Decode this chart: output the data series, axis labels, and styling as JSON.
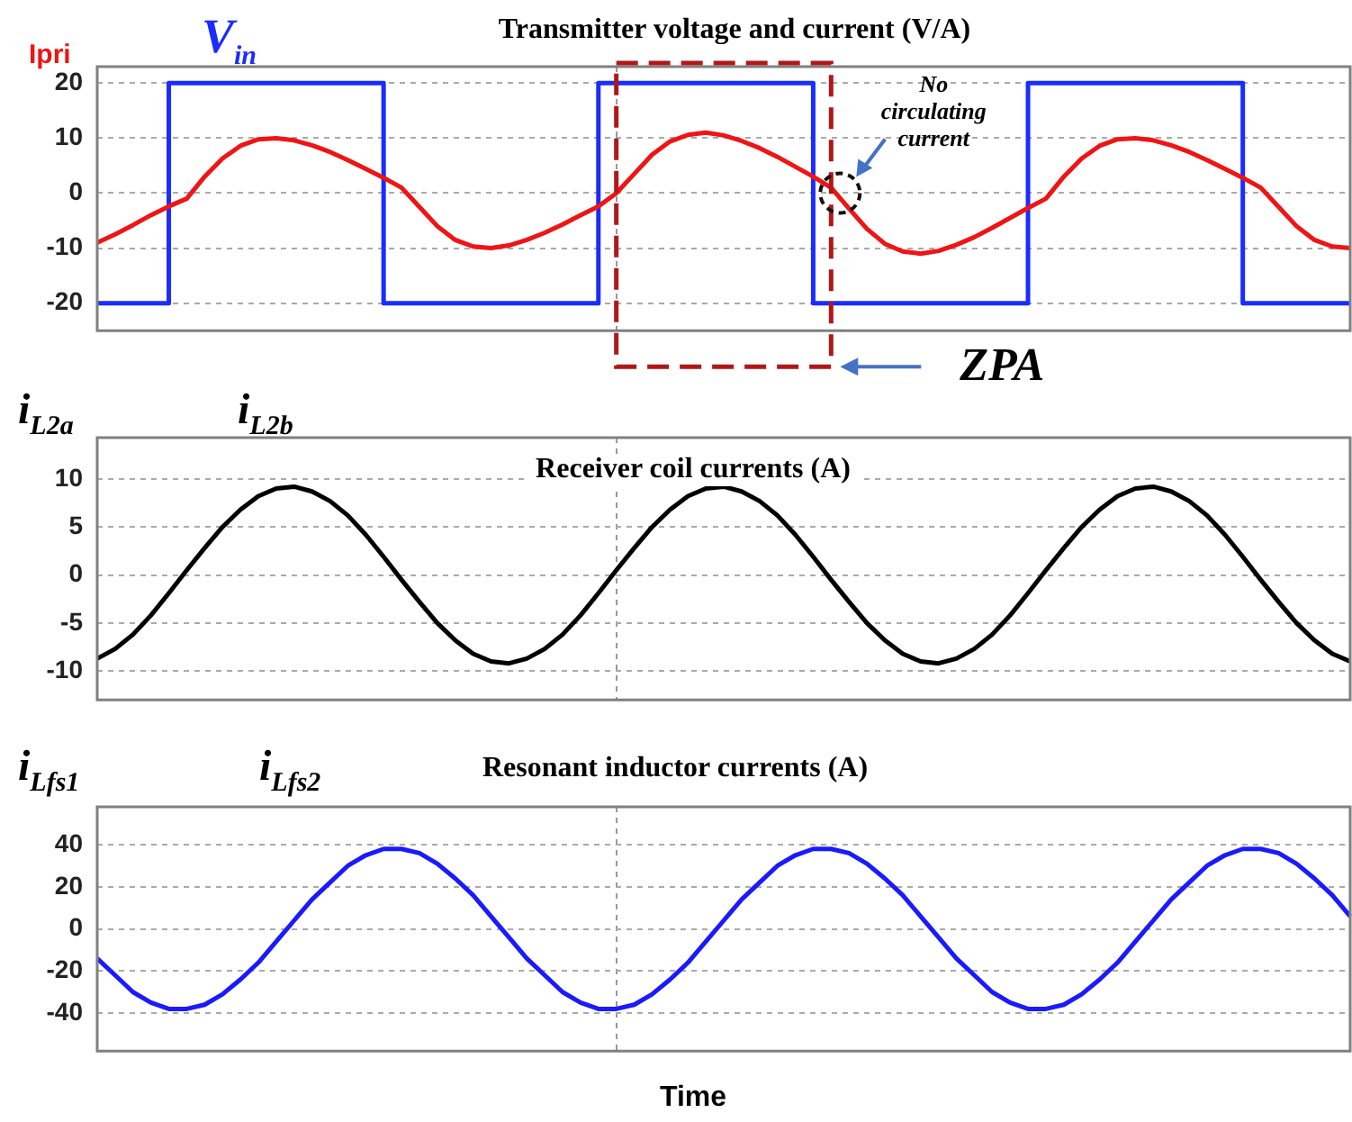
{
  "chart_data": [
    {
      "type": "line",
      "title": "Transmitter voltage and current (V/A)",
      "categories": [
        null,
        null,
        null,
        null,
        null,
        null,
        null,
        null,
        null,
        null,
        null,
        null,
        null,
        null,
        null,
        null,
        null,
        null,
        null,
        null,
        null,
        null,
        null,
        null,
        null,
        null,
        null,
        null,
        null,
        null,
        null,
        null,
        null,
        null,
        null,
        null,
        null,
        null,
        null,
        null,
        null,
        null,
        null,
        null,
        null,
        null,
        null,
        null,
        null,
        null,
        null,
        null,
        null,
        null,
        null,
        null,
        null,
        null,
        null,
        null,
        null,
        null,
        null,
        null,
        null,
        null,
        null,
        null,
        null,
        null,
        null
      ],
      "series": [
        {
          "name": "Ipri",
          "color": "#f01414",
          "values": [
            -9,
            -7.5,
            -5.8,
            -4,
            -2.4,
            -1,
            3,
            6.3,
            8.6,
            9.8,
            10,
            9.6,
            8.7,
            7.5,
            6,
            4.4,
            2.8,
            1,
            -2.5,
            -6,
            -8.5,
            -9.7,
            -10,
            -9.5,
            -8.5,
            -7.2,
            -5.7,
            -4,
            -2.4,
            0,
            3.5,
            7,
            9.4,
            10.6,
            11,
            10.5,
            9.5,
            8.2,
            6.6,
            4.8,
            3,
            1,
            -2.8,
            -6.5,
            -9.2,
            -10.6,
            -11,
            -10.5,
            -9.4,
            -8,
            -6.3,
            -4.5,
            -2.7,
            -1,
            3,
            6.3,
            8.6,
            9.8,
            10,
            9.6,
            8.7,
            7.5,
            6,
            4.4,
            2.8,
            1,
            -2.5,
            -6,
            -8.5,
            -9.7,
            -10
          ]
        },
        {
          "name": "V$_{in}$",
          "type": "step",
          "color": "#1a2cff",
          "values": [
            -20,
            -20,
            -20,
            -20,
            -20,
            20,
            20,
            20,
            20,
            20,
            20,
            20,
            20,
            20,
            20,
            20,
            20,
            -20,
            -20,
            -20,
            -20,
            -20,
            -20,
            -20,
            -20,
            -20,
            -20,
            -20,
            -20,
            20,
            20,
            20,
            20,
            20,
            20,
            20,
            20,
            20,
            20,
            20,
            20,
            -20,
            -20,
            -20,
            -20,
            -20,
            -20,
            -20,
            -20,
            -20,
            -20,
            -20,
            -20,
            20,
            20,
            20,
            20,
            20,
            20,
            20,
            20,
            20,
            20,
            20,
            20,
            -20,
            -20,
            -20,
            -20,
            -20,
            -20
          ]
        }
      ],
      "ylim": [
        -25,
        23
      ],
      "yticks": [
        -20,
        -10,
        0,
        10,
        20
      ],
      "tick_labels": "y",
      "grid": true,
      "legend": "top left",
      "marker": "none",
      "line_style": "solid",
      "annotations": [
        "No circulating current",
        "ZPA"
      ]
    },
    {
      "type": "line",
      "title": "Receiver coil currents (A)",
      "categories": [
        null,
        null,
        null,
        null,
        null,
        null,
        null,
        null,
        null,
        null,
        null,
        null,
        null,
        null,
        null,
        null,
        null,
        null,
        null,
        null,
        null,
        null,
        null,
        null,
        null,
        null,
        null,
        null,
        null,
        null,
        null,
        null,
        null,
        null,
        null,
        null,
        null,
        null,
        null,
        null,
        null,
        null,
        null,
        null,
        null,
        null,
        null,
        null,
        null,
        null,
        null,
        null,
        null,
        null,
        null,
        null,
        null,
        null,
        null,
        null,
        null,
        null,
        null,
        null,
        null,
        null,
        null,
        null,
        null,
        null,
        null
      ],
      "series": [
        {
          "color": "#000000",
          "values": [
            -8.7,
            -7.7,
            -6.2,
            -4.2,
            -1.9,
            0.5,
            2.8,
            5.0,
            6.8,
            8.2,
            9.0,
            9.2,
            8.7,
            7.7,
            6.2,
            4.2,
            1.9,
            -0.5,
            -2.8,
            -5.0,
            -6.8,
            -8.2,
            -9.0,
            -9.2,
            -8.7,
            -7.7,
            -6.2,
            -4.2,
            -1.9,
            0.5,
            2.8,
            5.0,
            6.8,
            8.2,
            9.0,
            9.2,
            8.7,
            7.7,
            6.2,
            4.2,
            1.9,
            -0.5,
            -2.8,
            -5.0,
            -6.8,
            -8.2,
            -9.0,
            -9.2,
            -8.7,
            -7.7,
            -6.2,
            -4.2,
            -1.9,
            0.5,
            2.8,
            5.0,
            6.8,
            8.2,
            9.0,
            9.2,
            8.7,
            7.7,
            6.2,
            4.2,
            1.9,
            -0.5,
            -2.8,
            -5.0,
            -6.8,
            -8.2,
            -9.0
          ]
        }
      ],
      "ylim": [
        -13,
        14.3
      ],
      "yticks": [
        -10,
        -5,
        0,
        5,
        10
      ],
      "tick_labels": "y",
      "grid": true,
      "marker": "none",
      "line_style": "solid",
      "annotations": [
        "i$_{L2a}$",
        "i$_{L2b}$"
      ]
    },
    {
      "type": "line",
      "title": "Resonant inductor currents (A)",
      "xlabel": "Time",
      "categories": [
        null,
        null,
        null,
        null,
        null,
        null,
        null,
        null,
        null,
        null,
        null,
        null,
        null,
        null,
        null,
        null,
        null,
        null,
        null,
        null,
        null,
        null,
        null,
        null,
        null,
        null,
        null,
        null,
        null,
        null,
        null,
        null,
        null,
        null,
        null,
        null,
        null,
        null,
        null,
        null,
        null,
        null,
        null,
        null,
        null,
        null,
        null,
        null,
        null,
        null,
        null,
        null,
        null,
        null,
        null,
        null,
        null,
        null,
        null,
        null,
        null,
        null,
        null,
        null,
        null,
        null,
        null,
        null,
        null,
        null,
        null
      ],
      "series": [
        {
          "color": "#1a1aff",
          "values": [
            -14,
            -22,
            -30,
            -35,
            -38,
            -38,
            -36,
            -31,
            -24,
            -16,
            -6,
            4,
            14,
            22,
            30,
            35,
            38,
            38,
            36,
            31,
            24,
            16,
            6,
            -4,
            -14,
            -22,
            -30,
            -35,
            -38,
            -38,
            -36,
            -31,
            -24,
            -16,
            -6,
            4,
            14,
            22,
            30,
            35,
            38,
            38,
            36,
            31,
            24,
            16,
            6,
            -4,
            -14,
            -22,
            -30,
            -35,
            -38,
            -38,
            -36,
            -31,
            -24,
            -16,
            -6,
            4,
            14,
            22,
            30,
            35,
            38,
            38,
            36,
            31,
            24,
            16,
            6
          ]
        }
      ],
      "ylim": [
        -58,
        58
      ],
      "yticks": [
        -40,
        -20,
        0,
        20,
        40
      ],
      "tick_labels": "y",
      "grid": true,
      "marker": "none",
      "line_style": "solid",
      "annotations": [
        "i$_{Lfs1}$",
        "i$_{Lfs2}$"
      ]
    }
  ]
}
